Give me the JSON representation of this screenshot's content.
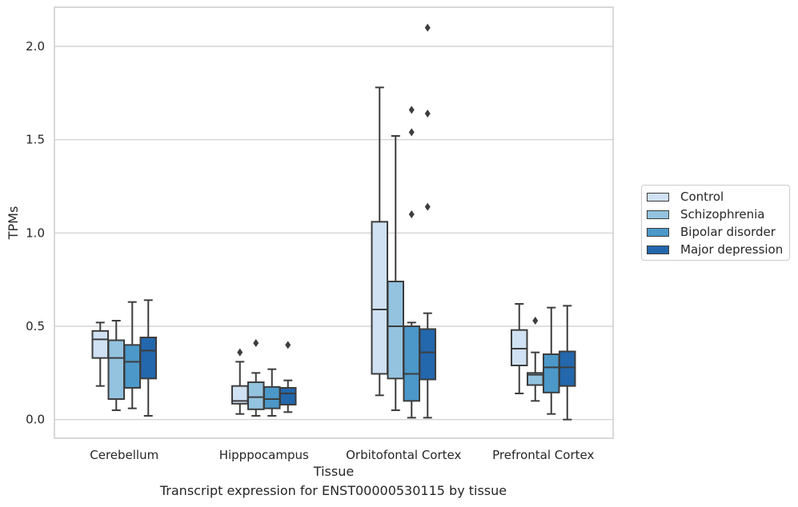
{
  "caption": "Transcript expression for ENST00000530115 by tissue",
  "chart_data": {
    "type": "box",
    "xlabel": "Tissue",
    "ylabel": "TPMs",
    "ylim": [
      -0.1,
      2.21
    ],
    "yticks": [
      0.0,
      0.5,
      1.0,
      1.5,
      2.0
    ],
    "ytick_labels": [
      "0.0",
      "0.5",
      "1.0",
      "1.5",
      "2.0"
    ],
    "grid": "horizontal",
    "legend_position": "right",
    "categories": [
      "Cerebellum",
      "Hipppocampus",
      "Orbitofontal Cortex",
      "Prefrontal Cortex"
    ],
    "series": [
      {
        "name": "Control",
        "color": "#cfe1f2",
        "boxes": [
          {
            "whislo": 0.18,
            "q1": 0.33,
            "med": 0.43,
            "q3": 0.475,
            "whishi": 0.52,
            "fliers": []
          },
          {
            "whislo": 0.03,
            "q1": 0.085,
            "med": 0.1,
            "q3": 0.18,
            "whishi": 0.31,
            "fliers": [
              0.36
            ]
          },
          {
            "whislo": 0.13,
            "q1": 0.245,
            "med": 0.59,
            "q3": 1.06,
            "whishi": 1.78,
            "fliers": []
          },
          {
            "whislo": 0.14,
            "q1": 0.29,
            "med": 0.38,
            "q3": 0.48,
            "whishi": 0.62,
            "fliers": []
          }
        ]
      },
      {
        "name": "Schizophrenia",
        "color": "#93c3df",
        "boxes": [
          {
            "whislo": 0.05,
            "q1": 0.11,
            "med": 0.33,
            "q3": 0.425,
            "whishi": 0.53,
            "fliers": []
          },
          {
            "whislo": 0.02,
            "q1": 0.055,
            "med": 0.12,
            "q3": 0.2,
            "whishi": 0.25,
            "fliers": [
              0.41
            ]
          },
          {
            "whislo": 0.05,
            "q1": 0.22,
            "med": 0.5,
            "q3": 0.74,
            "whishi": 1.52,
            "fliers": []
          },
          {
            "whislo": 0.1,
            "q1": 0.185,
            "med": 0.24,
            "q3": 0.25,
            "whishi": 0.36,
            "fliers": [
              0.53
            ]
          }
        ]
      },
      {
        "name": "Bipolar disorder",
        "color": "#4b98c9",
        "boxes": [
          {
            "whislo": 0.06,
            "q1": 0.17,
            "med": 0.31,
            "q3": 0.4,
            "whishi": 0.63,
            "fliers": []
          },
          {
            "whislo": 0.02,
            "q1": 0.06,
            "med": 0.11,
            "q3": 0.175,
            "whishi": 0.27,
            "fliers": []
          },
          {
            "whislo": 0.01,
            "q1": 0.1,
            "med": 0.245,
            "q3": 0.5,
            "whishi": 0.52,
            "fliers": [
              1.1,
              1.54,
              1.66
            ]
          },
          {
            "whislo": 0.03,
            "q1": 0.145,
            "med": 0.28,
            "q3": 0.35,
            "whishi": 0.6,
            "fliers": []
          }
        ]
      },
      {
        "name": "Major depression",
        "color": "#2367ad",
        "boxes": [
          {
            "whislo": 0.02,
            "q1": 0.22,
            "med": 0.37,
            "q3": 0.44,
            "whishi": 0.64,
            "fliers": []
          },
          {
            "whislo": 0.04,
            "q1": 0.08,
            "med": 0.14,
            "q3": 0.17,
            "whishi": 0.21,
            "fliers": [
              0.4
            ]
          },
          {
            "whislo": 0.01,
            "q1": 0.215,
            "med": 0.36,
            "q3": 0.485,
            "whishi": 0.57,
            "fliers": [
              1.14,
              1.64,
              2.1
            ]
          },
          {
            "whislo": 0.0,
            "q1": 0.18,
            "med": 0.28,
            "q3": 0.365,
            "whishi": 0.61,
            "fliers": []
          }
        ]
      }
    ]
  }
}
